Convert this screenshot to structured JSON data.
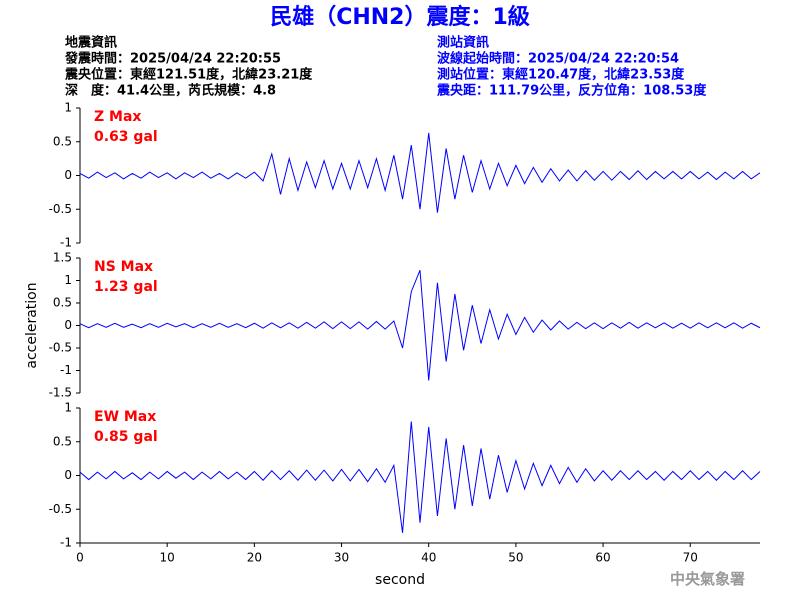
{
  "title": "民雄（CHN2）震度：1級",
  "info_left": [
    "地震資訊",
    "發震時間：2025/04/24 22:20:55",
    "震央位置：東經121.51度，北緯23.21度",
    "深　度：41.4公里，芮氏規模：4.8"
  ],
  "info_right": [
    "測站資訊",
    "波線起始時間：2025/04/24 22:20:54",
    "測站位置：東經120.47度，北緯23.53度",
    "震央距：111.79公里，反方位角：108.53度"
  ],
  "credit": "中央氣象署",
  "chart_data": [
    {
      "type": "line",
      "annotation": [
        "Z Max",
        "0.63 gal"
      ],
      "color": "#0000ff",
      "xlim": [
        0,
        78
      ],
      "ylim": [
        -1,
        1
      ],
      "yticks": [
        -1,
        -0.5,
        0,
        0.5,
        1
      ],
      "x": [
        0,
        1,
        2,
        3,
        4,
        5,
        6,
        7,
        8,
        9,
        10,
        11,
        12,
        13,
        14,
        15,
        16,
        17,
        18,
        19,
        20,
        21,
        22,
        23,
        24,
        25,
        26,
        27,
        28,
        29,
        30,
        31,
        32,
        33,
        34,
        35,
        36,
        37,
        38,
        39,
        40,
        41,
        42,
        43,
        44,
        45,
        46,
        47,
        48,
        49,
        50,
        51,
        52,
        53,
        54,
        55,
        56,
        57,
        58,
        59,
        60,
        61,
        62,
        63,
        64,
        65,
        66,
        67,
        68,
        69,
        70,
        71,
        72,
        73,
        74,
        75,
        76,
        77,
        78
      ],
      "values": [
        0.03,
        -0.04,
        0.05,
        -0.03,
        0.04,
        -0.05,
        0.03,
        -0.04,
        0.05,
        -0.03,
        0.04,
        -0.05,
        0.04,
        -0.03,
        0.05,
        -0.04,
        0.03,
        -0.05,
        0.04,
        -0.04,
        0.05,
        -0.08,
        0.32,
        -0.28,
        0.25,
        -0.22,
        0.2,
        -0.18,
        0.22,
        -0.2,
        0.18,
        -0.2,
        0.22,
        -0.18,
        0.25,
        -0.22,
        0.3,
        -0.35,
        0.45,
        -0.5,
        0.63,
        -0.55,
        0.4,
        -0.35,
        0.3,
        -0.25,
        0.22,
        -0.2,
        0.18,
        -0.15,
        0.15,
        -0.12,
        0.12,
        -0.1,
        0.1,
        -0.08,
        0.08,
        -0.08,
        0.07,
        -0.07,
        0.06,
        -0.07,
        0.06,
        -0.06,
        0.07,
        -0.06,
        0.06,
        -0.05,
        0.06,
        -0.05,
        0.06,
        -0.05,
        0.05,
        -0.06,
        0.05,
        -0.05,
        0.06,
        -0.05,
        0.04
      ]
    },
    {
      "type": "line",
      "annotation": [
        "NS Max",
        "1.23 gal"
      ],
      "color": "#0000ff",
      "ylabel": "acceleration",
      "xlim": [
        0,
        78
      ],
      "ylim": [
        -1.5,
        1.5
      ],
      "yticks": [
        -1.5,
        -1,
        -0.5,
        0,
        0.5,
        1,
        1.5
      ],
      "x": [
        0,
        1,
        2,
        3,
        4,
        5,
        6,
        7,
        8,
        9,
        10,
        11,
        12,
        13,
        14,
        15,
        16,
        17,
        18,
        19,
        20,
        21,
        22,
        23,
        24,
        25,
        26,
        27,
        28,
        29,
        30,
        31,
        32,
        33,
        34,
        35,
        36,
        37,
        38,
        39,
        40,
        41,
        42,
        43,
        44,
        45,
        46,
        47,
        48,
        49,
        50,
        51,
        52,
        53,
        54,
        55,
        56,
        57,
        58,
        59,
        60,
        61,
        62,
        63,
        64,
        65,
        66,
        67,
        68,
        69,
        70,
        71,
        72,
        73,
        74,
        75,
        76,
        77,
        78
      ],
      "values": [
        0.04,
        -0.05,
        0.04,
        -0.04,
        0.05,
        -0.04,
        0.03,
        -0.05,
        0.04,
        -0.04,
        0.05,
        -0.03,
        0.04,
        -0.05,
        0.04,
        -0.04,
        0.05,
        -0.04,
        0.04,
        -0.05,
        0.05,
        -0.06,
        0.06,
        -0.05,
        0.06,
        -0.06,
        0.07,
        -0.06,
        0.08,
        -0.07,
        0.08,
        -0.07,
        0.08,
        -0.08,
        0.09,
        -0.08,
        0.1,
        -0.5,
        0.75,
        1.23,
        -1.22,
        0.95,
        -0.8,
        0.7,
        -0.55,
        0.45,
        -0.4,
        0.35,
        -0.3,
        0.25,
        -0.2,
        0.18,
        -0.15,
        0.12,
        -0.1,
        0.1,
        -0.08,
        0.07,
        -0.07,
        0.06,
        -0.07,
        0.06,
        -0.06,
        0.07,
        -0.06,
        0.06,
        -0.05,
        0.06,
        -0.06,
        0.05,
        -0.06,
        0.06,
        -0.05,
        0.06,
        -0.05,
        0.06,
        -0.06,
        0.05,
        -0.05
      ]
    },
    {
      "type": "line",
      "annotation": [
        "EW Max",
        "0.85 gal"
      ],
      "color": "#0000ff",
      "xlabel": "second",
      "xlim": [
        0,
        78
      ],
      "ylim": [
        -1,
        1
      ],
      "yticks": [
        -1,
        -0.5,
        0,
        0.5,
        1
      ],
      "xticks": [
        0,
        10,
        20,
        30,
        40,
        50,
        60,
        70
      ],
      "x": [
        0,
        1,
        2,
        3,
        4,
        5,
        6,
        7,
        8,
        9,
        10,
        11,
        12,
        13,
        14,
        15,
        16,
        17,
        18,
        19,
        20,
        21,
        22,
        23,
        24,
        25,
        26,
        27,
        28,
        29,
        30,
        31,
        32,
        33,
        34,
        35,
        36,
        37,
        38,
        39,
        40,
        41,
        42,
        43,
        44,
        45,
        46,
        47,
        48,
        49,
        50,
        51,
        52,
        53,
        54,
        55,
        56,
        57,
        58,
        59,
        60,
        61,
        62,
        63,
        64,
        65,
        66,
        67,
        68,
        69,
        70,
        71,
        72,
        73,
        74,
        75,
        76,
        77,
        78
      ],
      "values": [
        0.05,
        -0.06,
        0.05,
        -0.05,
        0.06,
        -0.05,
        0.04,
        -0.06,
        0.05,
        -0.05,
        0.06,
        -0.04,
        0.05,
        -0.06,
        0.05,
        -0.05,
        0.06,
        -0.05,
        0.05,
        -0.06,
        0.06,
        -0.07,
        0.07,
        -0.06,
        0.07,
        -0.07,
        0.08,
        -0.07,
        0.08,
        -0.08,
        0.09,
        -0.08,
        0.09,
        -0.09,
        0.1,
        -0.1,
        0.15,
        -0.85,
        0.8,
        -0.7,
        0.72,
        -0.6,
        0.55,
        -0.5,
        0.45,
        -0.45,
        0.4,
        -0.35,
        0.3,
        -0.25,
        0.22,
        -0.2,
        0.18,
        -0.15,
        0.15,
        -0.12,
        0.12,
        -0.1,
        0.1,
        -0.08,
        0.07,
        -0.07,
        0.07,
        -0.06,
        0.07,
        -0.06,
        0.06,
        -0.07,
        0.06,
        -0.06,
        0.07,
        -0.06,
        0.06,
        -0.07,
        0.06,
        -0.06,
        0.07,
        -0.06,
        0.06
      ]
    }
  ]
}
